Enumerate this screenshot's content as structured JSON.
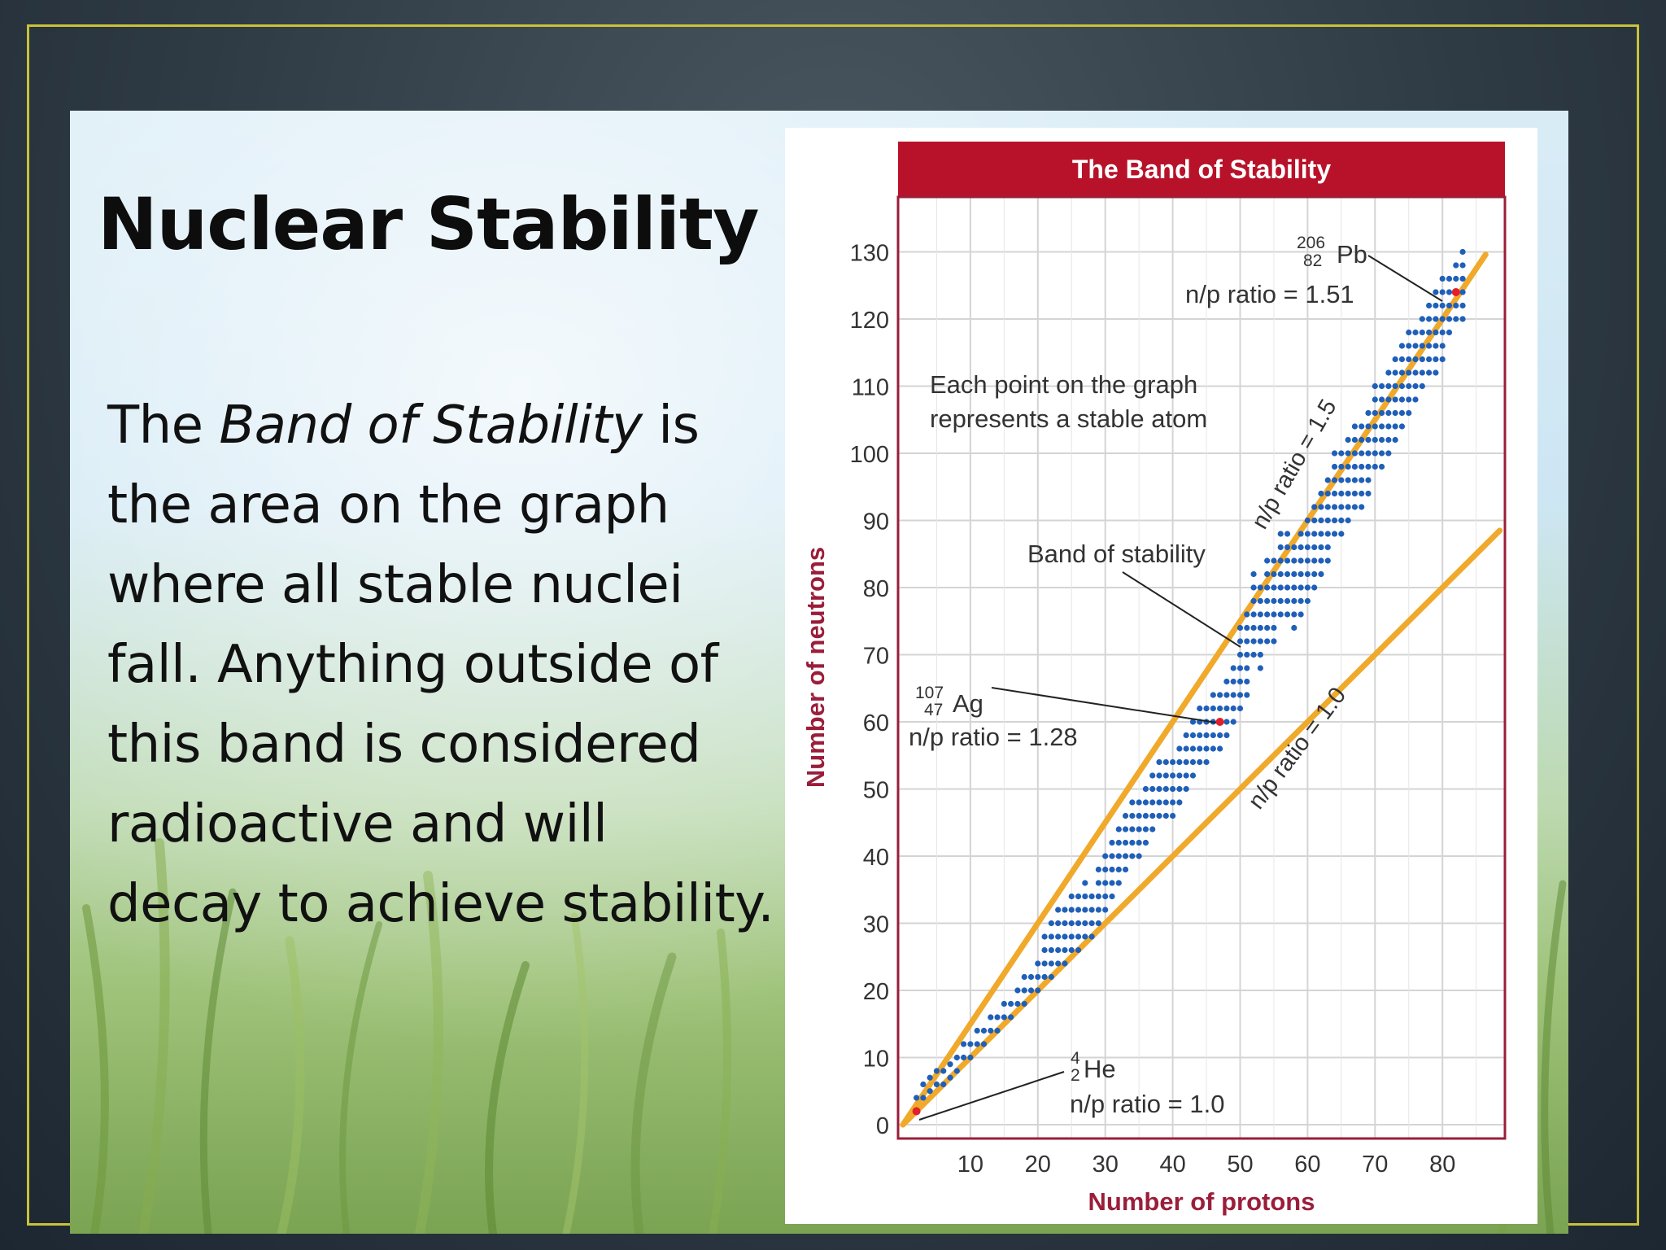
{
  "slide": {
    "title": "Nuclear Stability",
    "body_part1": "The ",
    "body_italic": "Band of Stability",
    "body_part2": " is the area on the graph where all stable nuclei fall.  Anything outside of this band is considered radioactive and will decay to achieve stability."
  },
  "chart_data": {
    "type": "scatter",
    "title": "The Band of Stability",
    "xlabel": "Number of protons",
    "ylabel": "Number of neutrons",
    "xlim": [
      0,
      90
    ],
    "ylim": [
      0,
      130
    ],
    "x_ticks": [
      10,
      20,
      30,
      40,
      50,
      60,
      70,
      80
    ],
    "y_ticks": [
      0,
      10,
      20,
      30,
      40,
      50,
      60,
      70,
      80,
      90,
      100,
      110,
      120,
      130
    ],
    "grid": true,
    "colors": {
      "points": "#1f5fb8",
      "highlight": "#e0202a",
      "lines": "#f0a92a",
      "frame": "#9a1e3a",
      "title_bar": "#b8122a"
    },
    "reference_lines": [
      {
        "label": "n/p ratio = 1.5",
        "slope": 1.5
      },
      {
        "label": "n/p ratio = 1.0",
        "slope": 1.0
      }
    ],
    "band": [
      [
        2,
        2
      ],
      [
        3,
        4
      ],
      [
        4,
        5
      ],
      [
        5,
        6
      ],
      [
        6,
        6
      ],
      [
        7,
        7
      ],
      [
        8,
        8
      ],
      [
        9,
        10
      ],
      [
        10,
        10
      ],
      [
        11,
        12
      ],
      [
        12,
        12
      ],
      [
        13,
        14
      ],
      [
        14,
        14
      ],
      [
        15,
        16
      ],
      [
        16,
        16
      ],
      [
        17,
        18
      ],
      [
        18,
        20
      ],
      [
        19,
        20
      ],
      [
        20,
        20
      ],
      [
        21,
        24
      ],
      [
        22,
        26
      ],
      [
        23,
        28
      ],
      [
        24,
        28
      ],
      [
        25,
        30
      ],
      [
        26,
        30
      ],
      [
        27,
        32
      ],
      [
        28,
        30
      ],
      [
        29,
        34
      ],
      [
        30,
        36
      ],
      [
        31,
        38
      ],
      [
        32,
        40
      ],
      [
        33,
        42
      ],
      [
        34,
        44
      ],
      [
        35,
        44
      ],
      [
        36,
        46
      ],
      [
        37,
        48
      ],
      [
        38,
        50
      ],
      [
        39,
        50
      ],
      [
        40,
        50
      ],
      [
        41,
        52
      ],
      [
        42,
        54
      ],
      [
        43,
        56
      ],
      [
        44,
        58
      ],
      [
        45,
        58
      ],
      [
        46,
        60
      ],
      [
        47,
        60
      ],
      [
        48,
        62
      ],
      [
        49,
        64
      ],
      [
        50,
        68
      ],
      [
        51,
        70
      ],
      [
        52,
        76
      ],
      [
        53,
        74
      ],
      [
        54,
        78
      ],
      [
        55,
        78
      ],
      [
        56,
        82
      ],
      [
        57,
        82
      ],
      [
        58,
        80
      ],
      [
        59,
        82
      ],
      [
        60,
        84
      ],
      [
        61,
        86
      ],
      [
        62,
        88
      ],
      [
        63,
        90
      ],
      [
        64,
        94
      ],
      [
        65,
        94
      ],
      [
        66,
        96
      ],
      [
        67,
        98
      ],
      [
        68,
        98
      ],
      [
        69,
        100
      ],
      [
        70,
        104
      ],
      [
        71,
        104
      ],
      [
        72,
        106
      ],
      [
        73,
        108
      ],
      [
        74,
        110
      ],
      [
        75,
        112
      ],
      [
        76,
        114
      ],
      [
        77,
        116
      ],
      [
        78,
        118
      ],
      [
        79,
        118
      ],
      [
        80,
        120
      ],
      [
        81,
        124
      ],
      [
        82,
        126
      ],
      [
        83,
        126
      ]
    ],
    "annotations": [
      {
        "sup": "206",
        "sub": "82",
        "symbol": "Pb",
        "ratio": "n/p ratio = 1.51",
        "point": [
          82,
          124
        ]
      },
      {
        "sup": "107",
        "sub": "47",
        "symbol": "Ag",
        "ratio": "n/p ratio = 1.28",
        "point": [
          47,
          60
        ]
      },
      {
        "sup": "4",
        "sub": "2",
        "symbol": "He",
        "ratio": "n/p ratio = 1.0",
        "point": [
          2,
          2
        ]
      }
    ],
    "notes": {
      "each_point_line1": "Each point on the graph",
      "each_point_line2": "represents a stable atom",
      "band_label": "Band of stability"
    }
  }
}
